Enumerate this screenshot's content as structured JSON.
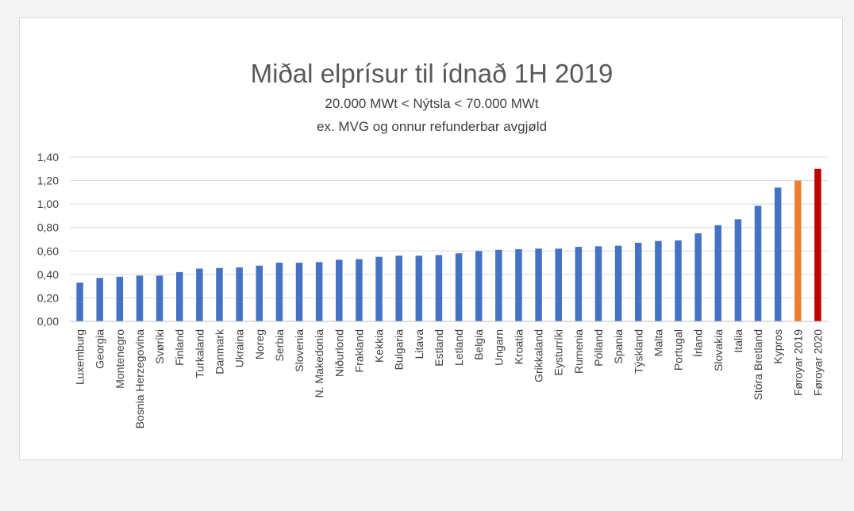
{
  "chart_data": {
    "type": "bar",
    "title": "Miðal elprísur til ídnað 1H 2019",
    "subtitle_lines": [
      "20.000 MWt < Nýtsla < 70.000 MWt",
      "ex. MVG og onnur refunderbar avgjøld"
    ],
    "xlabel": "",
    "ylabel": "",
    "ylim": [
      0,
      1.4
    ],
    "y_ticks": [
      "0,00",
      "0,20",
      "0,40",
      "0,60",
      "0,80",
      "1,00",
      "1,20",
      "1,40"
    ],
    "grid": true,
    "legend": "none",
    "categories": [
      "Luxemburg",
      "Georgia",
      "Montenegro",
      "Bosnia Herzegovina",
      "Svøríki",
      "Finland",
      "Turkaland",
      "Danmark",
      "Ukraina",
      "Noreg",
      "Serbia",
      "Slovenia",
      "N. Makedonia",
      "Niðurlond",
      "Frakland",
      "Kekkia",
      "Bulgaria",
      "Litava",
      "Estland",
      "Letland",
      "Belgia",
      "Ungarn",
      "Kroatia",
      "Grikkaland",
      "Eysturríki",
      "Rumenia",
      "Pólland",
      "Spania",
      "Týskland",
      "Malta",
      "Portugal",
      "Írland",
      "Slovakia",
      "Italia",
      "Stóra Bretland",
      "Kypros",
      "Føroyar 2019",
      "Føroyar 2020"
    ],
    "values": [
      0.33,
      0.37,
      0.38,
      0.39,
      0.39,
      0.42,
      0.45,
      0.455,
      0.46,
      0.475,
      0.5,
      0.5,
      0.505,
      0.525,
      0.53,
      0.55,
      0.56,
      0.56,
      0.565,
      0.58,
      0.6,
      0.61,
      0.615,
      0.62,
      0.62,
      0.635,
      0.64,
      0.645,
      0.67,
      0.685,
      0.69,
      0.75,
      0.82,
      0.87,
      0.985,
      1.14,
      1.2,
      1.3
    ],
    "colors": {
      "default": "#4472c4",
      "Føroyar 2019": "#ed7d31",
      "Føroyar 2020": "#c00000"
    }
  }
}
